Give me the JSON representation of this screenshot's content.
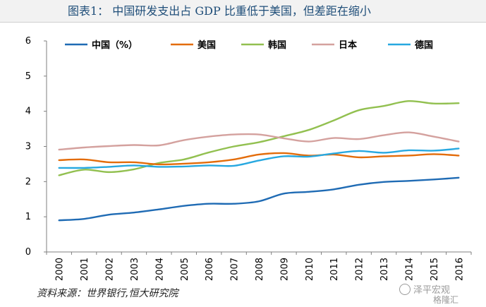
{
  "title": "图表1：  中国研发支出占 GDP 比重低于美国，但差距在缩小",
  "source": "资料来源：世界银行,恒大研究院",
  "watermark": {
    "line1": "泽平宏观",
    "line2": "格隆汇"
  },
  "chart_data": {
    "type": "line",
    "x": [
      "2000",
      "2001",
      "2002",
      "2003",
      "2004",
      "2005",
      "2006",
      "2007",
      "2008",
      "2009",
      "2010",
      "2011",
      "2012",
      "2013",
      "2014",
      "2015",
      "2016"
    ],
    "ylim": [
      0,
      6
    ],
    "yticks": [
      "0",
      "1",
      "2",
      "3",
      "4",
      "5",
      "6"
    ],
    "grid": false,
    "legend_position": "top",
    "series": [
      {
        "name": "中国（%）",
        "color": "#1f6bb4",
        "values": [
          0.9,
          0.94,
          1.06,
          1.12,
          1.21,
          1.31,
          1.37,
          1.37,
          1.44,
          1.66,
          1.71,
          1.78,
          1.91,
          1.99,
          2.02,
          2.06,
          2.11
        ]
      },
      {
        "name": "美国",
        "color": "#e36c0a",
        "values": [
          2.61,
          2.63,
          2.55,
          2.55,
          2.49,
          2.51,
          2.55,
          2.63,
          2.77,
          2.81,
          2.74,
          2.77,
          2.69,
          2.72,
          2.74,
          2.78,
          2.74
        ]
      },
      {
        "name": "韩国",
        "color": "#92c050",
        "values": [
          2.18,
          2.34,
          2.27,
          2.35,
          2.53,
          2.63,
          2.83,
          3.0,
          3.12,
          3.29,
          3.47,
          3.74,
          4.03,
          4.15,
          4.29,
          4.22,
          4.23
        ]
      },
      {
        "name": "日本",
        "color": "#d4a19e",
        "values": [
          2.91,
          2.97,
          3.01,
          3.04,
          3.03,
          3.18,
          3.28,
          3.34,
          3.34,
          3.23,
          3.14,
          3.24,
          3.21,
          3.32,
          3.4,
          3.28,
          3.14
        ]
      },
      {
        "name": "德国",
        "color": "#27a8e0",
        "values": [
          2.39,
          2.39,
          2.42,
          2.46,
          2.42,
          2.43,
          2.46,
          2.45,
          2.6,
          2.72,
          2.71,
          2.8,
          2.87,
          2.82,
          2.89,
          2.88,
          2.94
        ]
      }
    ]
  }
}
